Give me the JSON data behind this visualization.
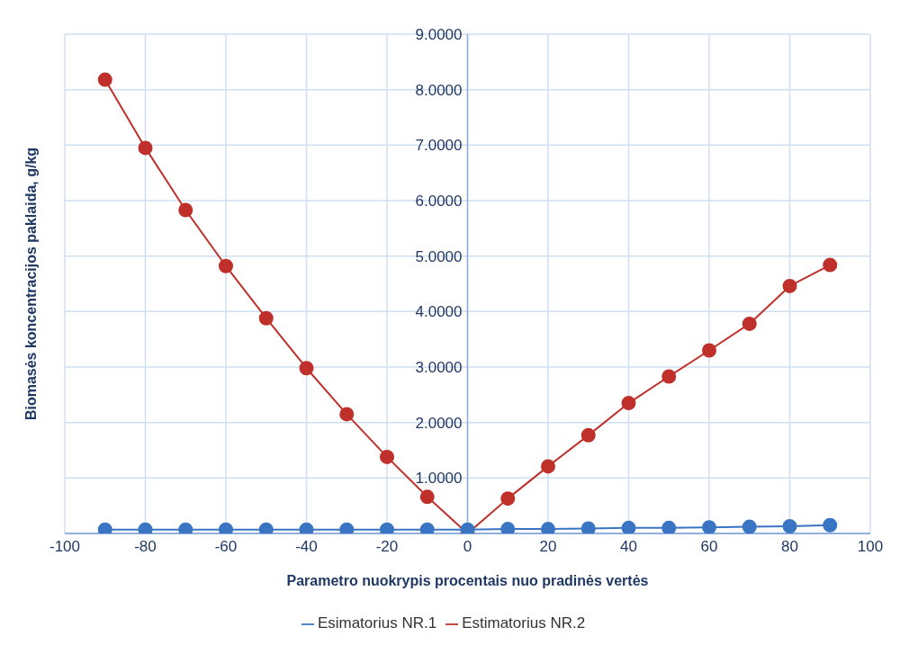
{
  "chart_data": {
    "type": "line",
    "xlabel": "Parametro nuokrypis procentais nuo pradinės vertės",
    "ylabel": "Biomasės koncentracijos paklaida, g/kg",
    "x": [
      -90,
      -80,
      -70,
      -60,
      -50,
      -40,
      -30,
      -20,
      -10,
      0,
      10,
      20,
      30,
      40,
      50,
      60,
      70,
      80,
      90
    ],
    "series": [
      {
        "name": "Esimatorius NR.1",
        "color": "#3a75c4",
        "values": [
          0.07,
          0.07,
          0.07,
          0.07,
          0.07,
          0.07,
          0.07,
          0.07,
          0.07,
          0.07,
          0.08,
          0.08,
          0.09,
          0.1,
          0.1,
          0.11,
          0.12,
          0.13,
          0.15
        ]
      },
      {
        "name": "Estimatorius NR.2",
        "color": "#c0302b",
        "values": [
          8.18,
          6.95,
          5.83,
          4.82,
          3.88,
          2.98,
          2.15,
          1.38,
          0.66,
          0,
          0.63,
          1.21,
          1.77,
          2.35,
          2.83,
          3.3,
          3.78,
          4.46,
          4.84
        ]
      }
    ],
    "xlim": [
      -100,
      100
    ],
    "xticks": [
      -100,
      -80,
      -60,
      -40,
      -20,
      0,
      20,
      40,
      60,
      80,
      100
    ],
    "ylim": [
      0,
      9
    ],
    "yticks": [
      {
        "value": 0,
        "label": null
      },
      {
        "value": 1,
        "label": "1.0000"
      },
      {
        "value": 2,
        "label": "2.0000"
      },
      {
        "value": 3,
        "label": "3.0000"
      },
      {
        "value": 4,
        "label": "4.0000"
      },
      {
        "value": 5,
        "label": "5.0000"
      },
      {
        "value": 6,
        "label": "6.0000"
      },
      {
        "value": 7,
        "label": "7.0000"
      },
      {
        "value": 8,
        "label": "8.0000"
      },
      {
        "value": 9,
        "label": "9.0000"
      }
    ],
    "grid": true,
    "legend": "bottom",
    "marker": "circle",
    "line_style": "solid"
  }
}
